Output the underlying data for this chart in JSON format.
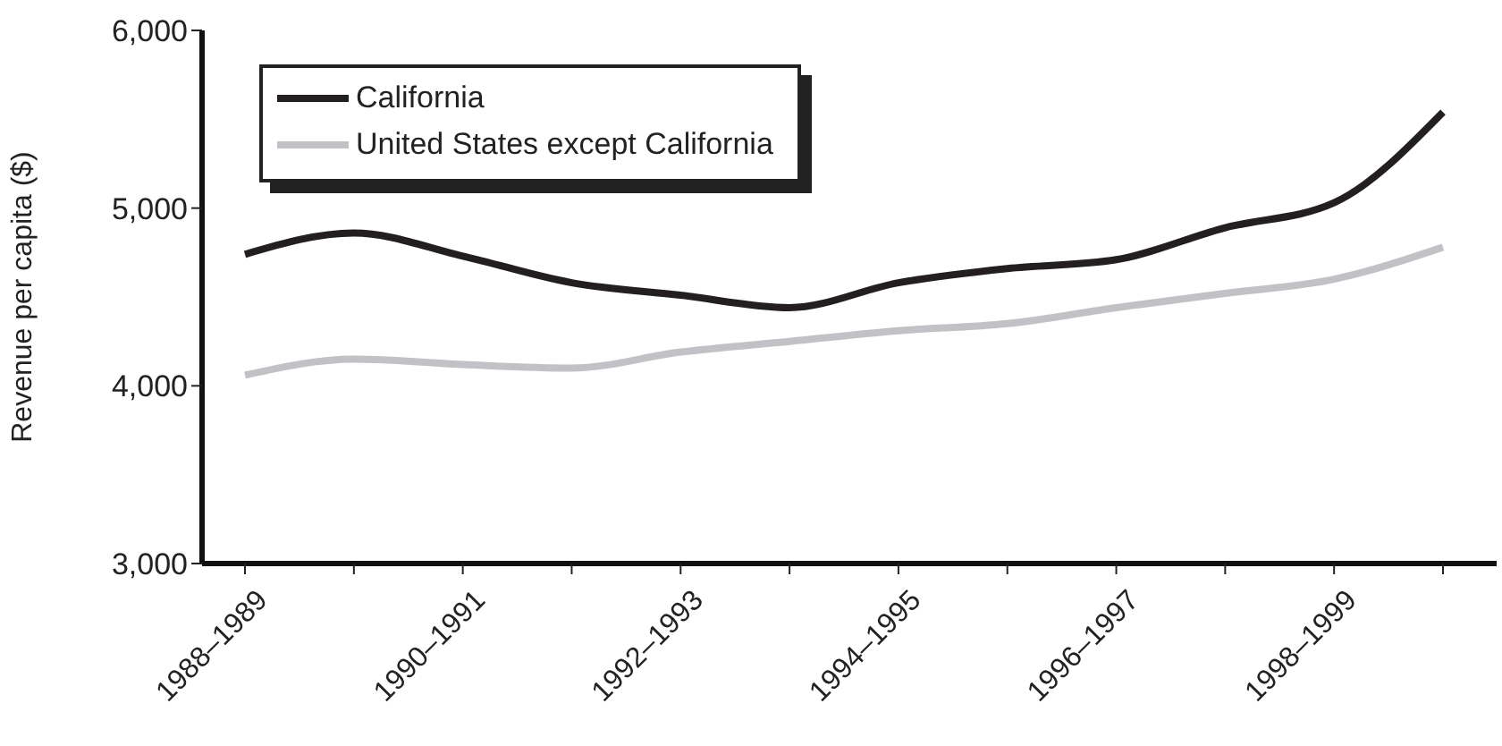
{
  "chart_data": {
    "type": "line",
    "ylabel": "Revenue per capita ($)",
    "categories": [
      "1988–1989",
      null,
      "1990–1991",
      null,
      "1992–1993",
      null,
      "1994–1995",
      null,
      "1996–1997",
      null,
      "1998–1999",
      null
    ],
    "series": [
      {
        "name": "California",
        "color": "#231f20",
        "values": [
          4740,
          4860,
          4730,
          4580,
          4510,
          4440,
          4580,
          4660,
          4710,
          4890,
          5030,
          5540
        ]
      },
      {
        "name": "United States except California",
        "color": "#c2c2c6",
        "values": [
          4060,
          4150,
          4120,
          4100,
          4190,
          4250,
          4310,
          4350,
          4440,
          4520,
          4600,
          4780
        ]
      }
    ],
    "ylim": [
      3000,
      6000
    ],
    "yticks": [
      {
        "value": 3000,
        "label": "3,000"
      },
      {
        "value": 4000,
        "label": "4,000"
      },
      {
        "value": 5000,
        "label": "5,000"
      },
      {
        "value": 6000,
        "label": "6,000"
      }
    ],
    "legend": "top left",
    "grid": false,
    "marker": "none",
    "line_style": "solid"
  }
}
